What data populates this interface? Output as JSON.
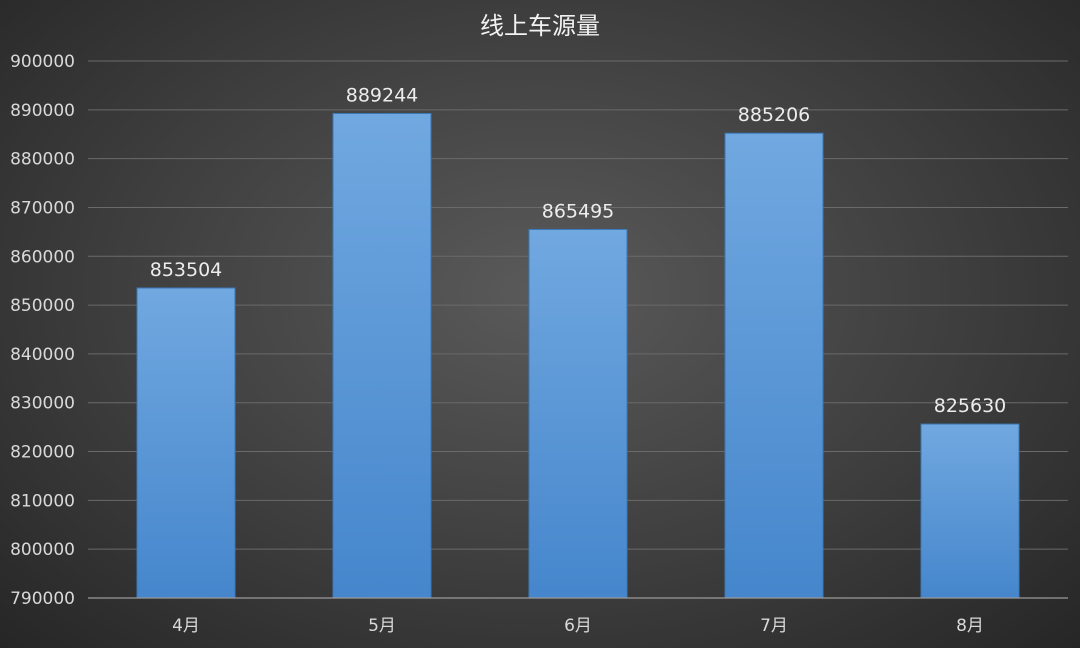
{
  "chart_data": {
    "type": "bar",
    "title": "线上车源量",
    "categories": [
      "4月",
      "5月",
      "6月",
      "7月",
      "8月"
    ],
    "values": [
      853504,
      889244,
      865495,
      885206,
      825630
    ],
    "ylim": [
      790000,
      900000
    ],
    "ytick_step": 10000,
    "grid": true,
    "legend": "none",
    "data_labels": true,
    "colors": {
      "bar_top": "#71a8e0",
      "bar_bottom": "#4586cc",
      "background": "#3e3e3e"
    }
  }
}
